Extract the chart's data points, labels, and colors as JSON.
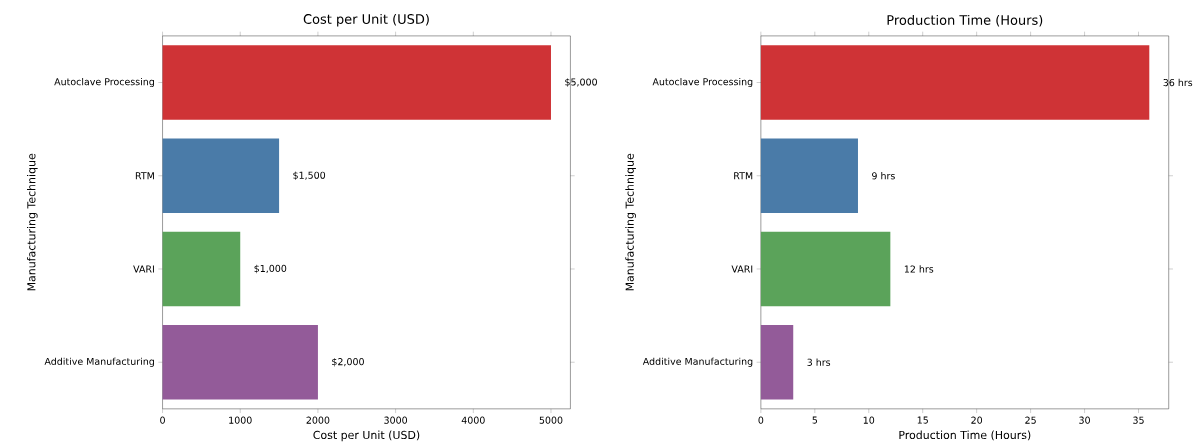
{
  "chart_data": [
    {
      "type": "bar",
      "orientation": "horizontal",
      "title": "Cost per Unit (USD)",
      "xlabel": "Cost per Unit (USD)",
      "ylabel": "Manufacturing Technique",
      "categories": [
        "Autoclave Processing",
        "RTM",
        "VARI",
        "Additive Manufacturing"
      ],
      "values": [
        5000,
        1500,
        1000,
        2000
      ],
      "colors": [
        "#cf3336",
        "#4a7ba8",
        "#5ba35a",
        "#935b99"
      ],
      "value_labels": [
        "$5,000",
        "$1,500",
        "$1,000",
        "$2,000"
      ],
      "xlim": [
        0,
        5250
      ],
      "xticks": [
        0,
        1000,
        2000,
        3000,
        4000,
        5000
      ]
    },
    {
      "type": "bar",
      "orientation": "horizontal",
      "title": "Production Time (Hours)",
      "xlabel": "Production Time (Hours)",
      "ylabel": "Manufacturing Technique",
      "categories": [
        "Autoclave Processing",
        "RTM",
        "VARI",
        "Additive Manufacturing"
      ],
      "values": [
        36,
        9,
        12,
        3
      ],
      "colors": [
        "#cf3336",
        "#4a7ba8",
        "#5ba35a",
        "#935b99"
      ],
      "value_labels": [
        "36 hrs",
        "9 hrs",
        "12 hrs",
        "3 hrs"
      ],
      "xlim": [
        0,
        37.8
      ],
      "xticks": [
        0,
        5,
        10,
        15,
        20,
        25,
        30,
        35
      ]
    }
  ]
}
